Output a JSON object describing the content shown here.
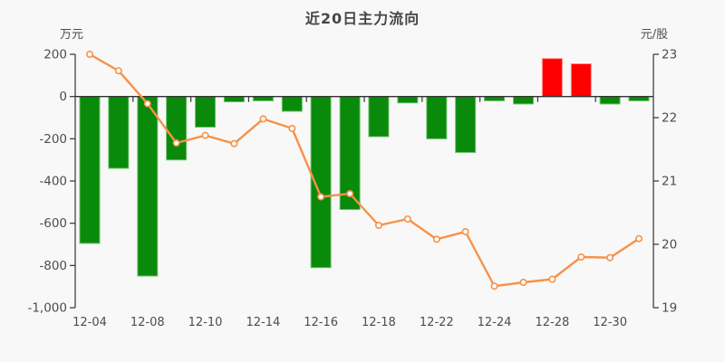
{
  "title": "近20日主力流向",
  "chart_data": {
    "type": "bar+line",
    "title": "近20日主力流向",
    "x_labels": [
      "12-04",
      "",
      "12-08",
      "",
      "12-10",
      "",
      "12-14",
      "",
      "12-16",
      "",
      "12-18",
      "",
      "12-22",
      "",
      "12-24",
      "",
      "12-28",
      "",
      "12-30",
      ""
    ],
    "left_axis": {
      "unit": "万元",
      "tick_labels": [
        "200",
        "0",
        "-200",
        "-400",
        "-600",
        "-800",
        "-1,000"
      ],
      "tick_values": [
        200,
        0,
        -200,
        -400,
        -600,
        -800,
        -1000
      ],
      "range": [
        -1000,
        200
      ]
    },
    "right_axis": {
      "unit": "元/股",
      "tick_labels": [
        "23",
        "22",
        "21",
        "20",
        "19"
      ],
      "tick_values": [
        23,
        22,
        21,
        20,
        19
      ],
      "range": [
        19,
        23
      ]
    },
    "series": [
      {
        "name": "main-force-net-flow-bars",
        "type": "bar",
        "axis": "left",
        "values": [
          -695,
          -340,
          -850,
          -300,
          -145,
          -25,
          -20,
          -70,
          -810,
          -535,
          -190,
          -30,
          -200,
          -265,
          -20,
          -35,
          180,
          155,
          -35,
          -20
        ]
      },
      {
        "name": "price-line",
        "type": "line",
        "axis": "right",
        "values": [
          23.0,
          22.74,
          22.22,
          21.6,
          21.72,
          21.59,
          21.98,
          21.83,
          20.75,
          20.8,
          20.3,
          20.4,
          20.08,
          20.2,
          19.34,
          19.4,
          19.45,
          19.8,
          19.79,
          20.09
        ]
      }
    ],
    "grid": "off",
    "legend": "none",
    "colors": {
      "background": "#f8f8f8",
      "bar_negative": "#0a8a0a",
      "bar_negative_border": "#6fbf6f",
      "bar_positive": "#fe0000",
      "bar_positive_border": "#ff8d8d",
      "line": "#f89148",
      "marker_fill": "#ffffff",
      "axis": "#333333",
      "text": "#4d4d4d",
      "title_text": "#454545"
    }
  }
}
